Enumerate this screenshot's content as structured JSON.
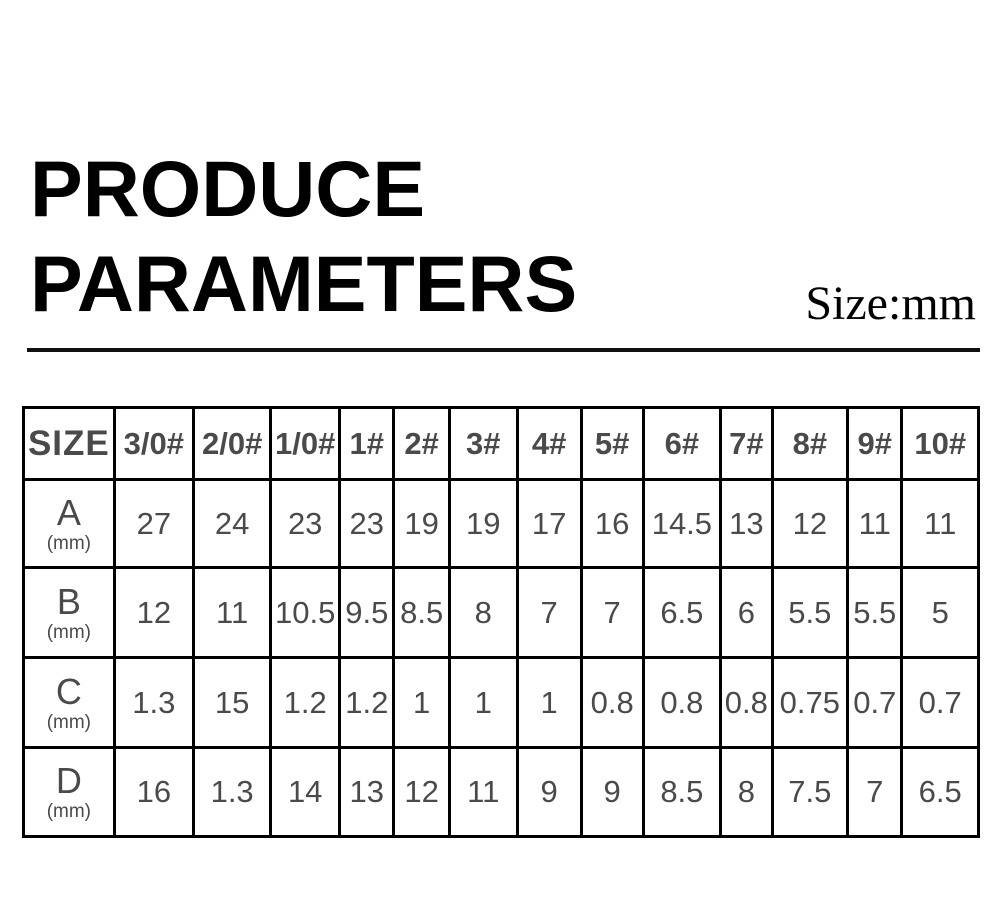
{
  "header": {
    "title_line1": "PRODUCE",
    "title_line2": "PARAMETERS",
    "unit_note": "Size:mm"
  },
  "table": {
    "header": [
      "SIZE",
      "3/0#",
      "2/0#",
      "1/0#",
      "1#",
      "2#",
      "3#",
      "4#",
      "5#",
      "6#",
      "7#",
      "8#",
      "9#",
      "10#"
    ],
    "rows": [
      {
        "label": "A",
        "unit": "(mm)",
        "values": [
          "27",
          "24",
          "23",
          "23",
          "19",
          "19",
          "17",
          "16",
          "14.5",
          "13",
          "12",
          "11",
          "11"
        ]
      },
      {
        "label": "B",
        "unit": "(mm)",
        "values": [
          "12",
          "11",
          "10.5",
          "9.5",
          "8.5",
          "8",
          "7",
          "7",
          "6.5",
          "6",
          "5.5",
          "5.5",
          "5"
        ]
      },
      {
        "label": "C",
        "unit": "(mm)",
        "values": [
          "1.3",
          "15",
          "1.2",
          "1.2",
          "1",
          "1",
          "1",
          "0.8",
          "0.8",
          "0.8",
          "0.75",
          "0.7",
          "0.7"
        ]
      },
      {
        "label": "D",
        "unit": "(mm)",
        "values": [
          "16",
          "1.3",
          "14",
          "13",
          "12",
          "11",
          "9",
          "9",
          "8.5",
          "8",
          "7.5",
          "7",
          "6.5"
        ]
      }
    ]
  },
  "colors": {
    "title_text": "#000000",
    "table_text": "#4a4a4a",
    "table_border": "#000000",
    "background": "#ffffff"
  }
}
